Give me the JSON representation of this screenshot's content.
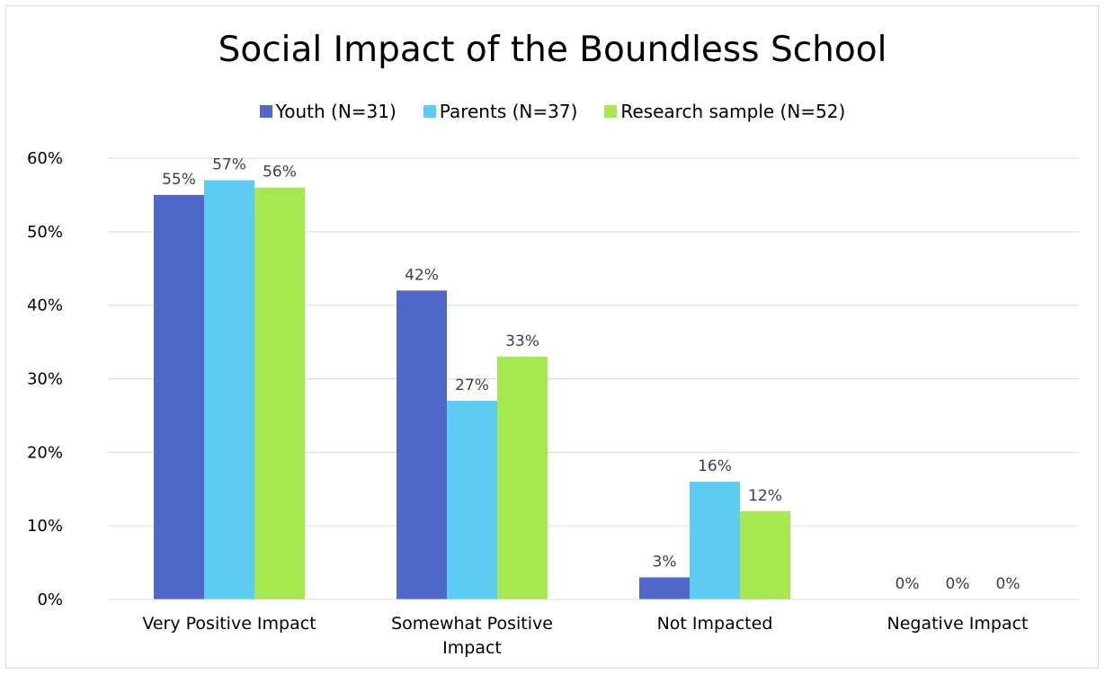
{
  "chart_data": {
    "type": "bar",
    "title": "Social Impact of the Boundless School",
    "categories": [
      "Very Positive Impact",
      "Somewhat Positive Impact",
      "Not Impacted",
      "Negative Impact"
    ],
    "category_lines": [
      [
        "Very Positive Impact"
      ],
      [
        "Somewhat Positive",
        "Impact"
      ],
      [
        "Not Impacted"
      ],
      [
        "Negative Impact"
      ]
    ],
    "series": [
      {
        "name": "Youth (N=31)",
        "color": "#4F67C9",
        "values": [
          55,
          42,
          3,
          0
        ],
        "labels": [
          "55%",
          "42%",
          "3%",
          "0%"
        ]
      },
      {
        "name": "Parents (N=37)",
        "color": "#5CCCF2",
        "values": [
          57,
          27,
          16,
          0
        ],
        "labels": [
          "57%",
          "27%",
          "16%",
          "0%"
        ]
      },
      {
        "name": "Research sample (N=52)",
        "color": "#A5E84F",
        "values": [
          56,
          33,
          12,
          0
        ],
        "labels": [
          "56%",
          "33%",
          "12%",
          "0%"
        ]
      }
    ],
    "ylim": [
      0,
      60
    ],
    "yticks": [
      0,
      10,
      20,
      30,
      40,
      50,
      60
    ],
    "ytick_labels": [
      "0%",
      "10%",
      "20%",
      "30%",
      "40%",
      "50%",
      "60%"
    ],
    "grid": true,
    "legend_position": "top"
  }
}
